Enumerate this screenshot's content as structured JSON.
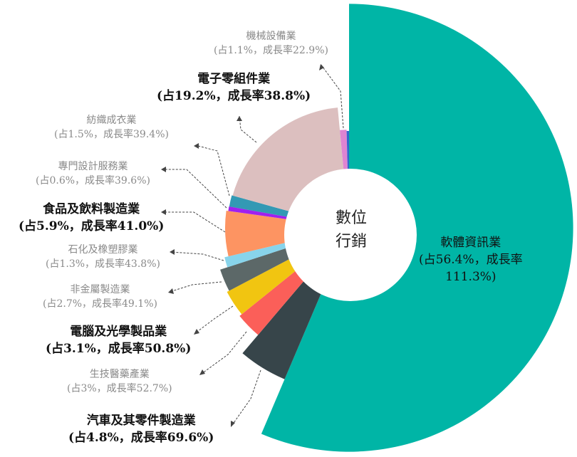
{
  "chart_data": {
    "type": "pie",
    "variant": "variable-radius donut (angle = share, radius = growth rate)",
    "center_label": [
      "數位",
      "行銷"
    ],
    "series": [
      {
        "name": "軟體資訊業",
        "share": 56.4,
        "growth": 111.3,
        "color": "#00b5a6",
        "label": "(占56.4%，成長率",
        "label2": "111.3%)"
      },
      {
        "name": "汽車及其零件製造業",
        "share": 4.8,
        "growth": 69.6,
        "color": "#37454a",
        "label": "(占4.8%，成長率69.6%)"
      },
      {
        "name": "生技醫藥產業",
        "share": 3,
        "growth": 52.7,
        "color": "#fb5f59",
        "label": "(占3%，成長率52.7%)"
      },
      {
        "name": "電腦及光學製品業",
        "share": 3.1,
        "growth": 50.8,
        "color": "#f1c511",
        "label": "(占3.1%，成長率50.8%)"
      },
      {
        "name": "非金屬製造業",
        "share": 2.7,
        "growth": 49.1,
        "color": "#5c6868",
        "label": "(占2.7%，成長率49.1%)"
      },
      {
        "name": "石化及橡塑膠業",
        "share": 1.3,
        "growth": 43.8,
        "color": "#88d4eb",
        "label": "(占1.3%，成長率43.8%)"
      },
      {
        "name": "食品及飲料製造業",
        "share": 5.9,
        "growth": 41.0,
        "color": "#fd9462",
        "label": "(占5.9%，成長率41.0%)"
      },
      {
        "name": "專門設計服務業",
        "share": 0.6,
        "growth": 39.6,
        "color": "#a020ef",
        "label": "(占0.6%，成長率39.6%)"
      },
      {
        "name": "紡織成衣業",
        "share": 1.5,
        "growth": 39.4,
        "color": "#3399b4",
        "label": "(占1.5%，成長率39.4%)"
      },
      {
        "name": "電子零組件業",
        "share": 19.2,
        "growth": 38.8,
        "color": "#dcbfbf",
        "label": "(占19.2%，成長率38.8%)"
      },
      {
        "name": "機械設備業",
        "share": 1.1,
        "growth": 22.9,
        "color": "#de84d2",
        "label": "(占1.1%，成長率22.9%)"
      }
    ]
  }
}
